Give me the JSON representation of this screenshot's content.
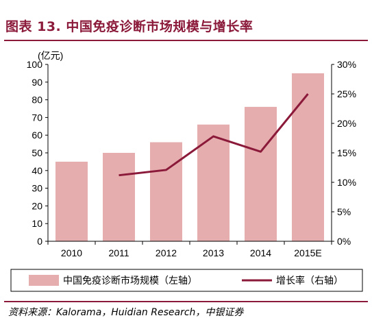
{
  "title": "图表 13. 中国免疫诊断市场规模与增长率",
  "source": "资料来源：Kalorama，Huidian Research，中银证券",
  "colors": {
    "bar": "#e6adae",
    "line": "#8b1a3a",
    "title": "#8b1a3a"
  },
  "chart_data": {
    "type": "bar+line",
    "categories": [
      "2010",
      "2011",
      "2012",
      "2013",
      "2014",
      "2015E"
    ],
    "y_left": {
      "unit": "(亿元)",
      "ylim": [
        0,
        100
      ],
      "ticks": [
        "0",
        "10",
        "20",
        "30",
        "40",
        "50",
        "60",
        "70",
        "80",
        "90",
        "100"
      ]
    },
    "y_right": {
      "ylim": [
        0,
        30
      ],
      "ticks": [
        "0%",
        "5%",
        "10%",
        "15%",
        "20%",
        "25%",
        "30%"
      ]
    },
    "series": [
      {
        "name": "中国免疫诊断市场规模（左轴）",
        "type": "bar",
        "axis": "left",
        "values": [
          45,
          50,
          56,
          66,
          76,
          95
        ]
      },
      {
        "name": "增长率（右轴）",
        "type": "line",
        "axis": "right",
        "values": [
          null,
          11.2,
          12.1,
          17.8,
          15.2,
          25
        ]
      }
    ],
    "grid": false,
    "legend": "bottom"
  }
}
